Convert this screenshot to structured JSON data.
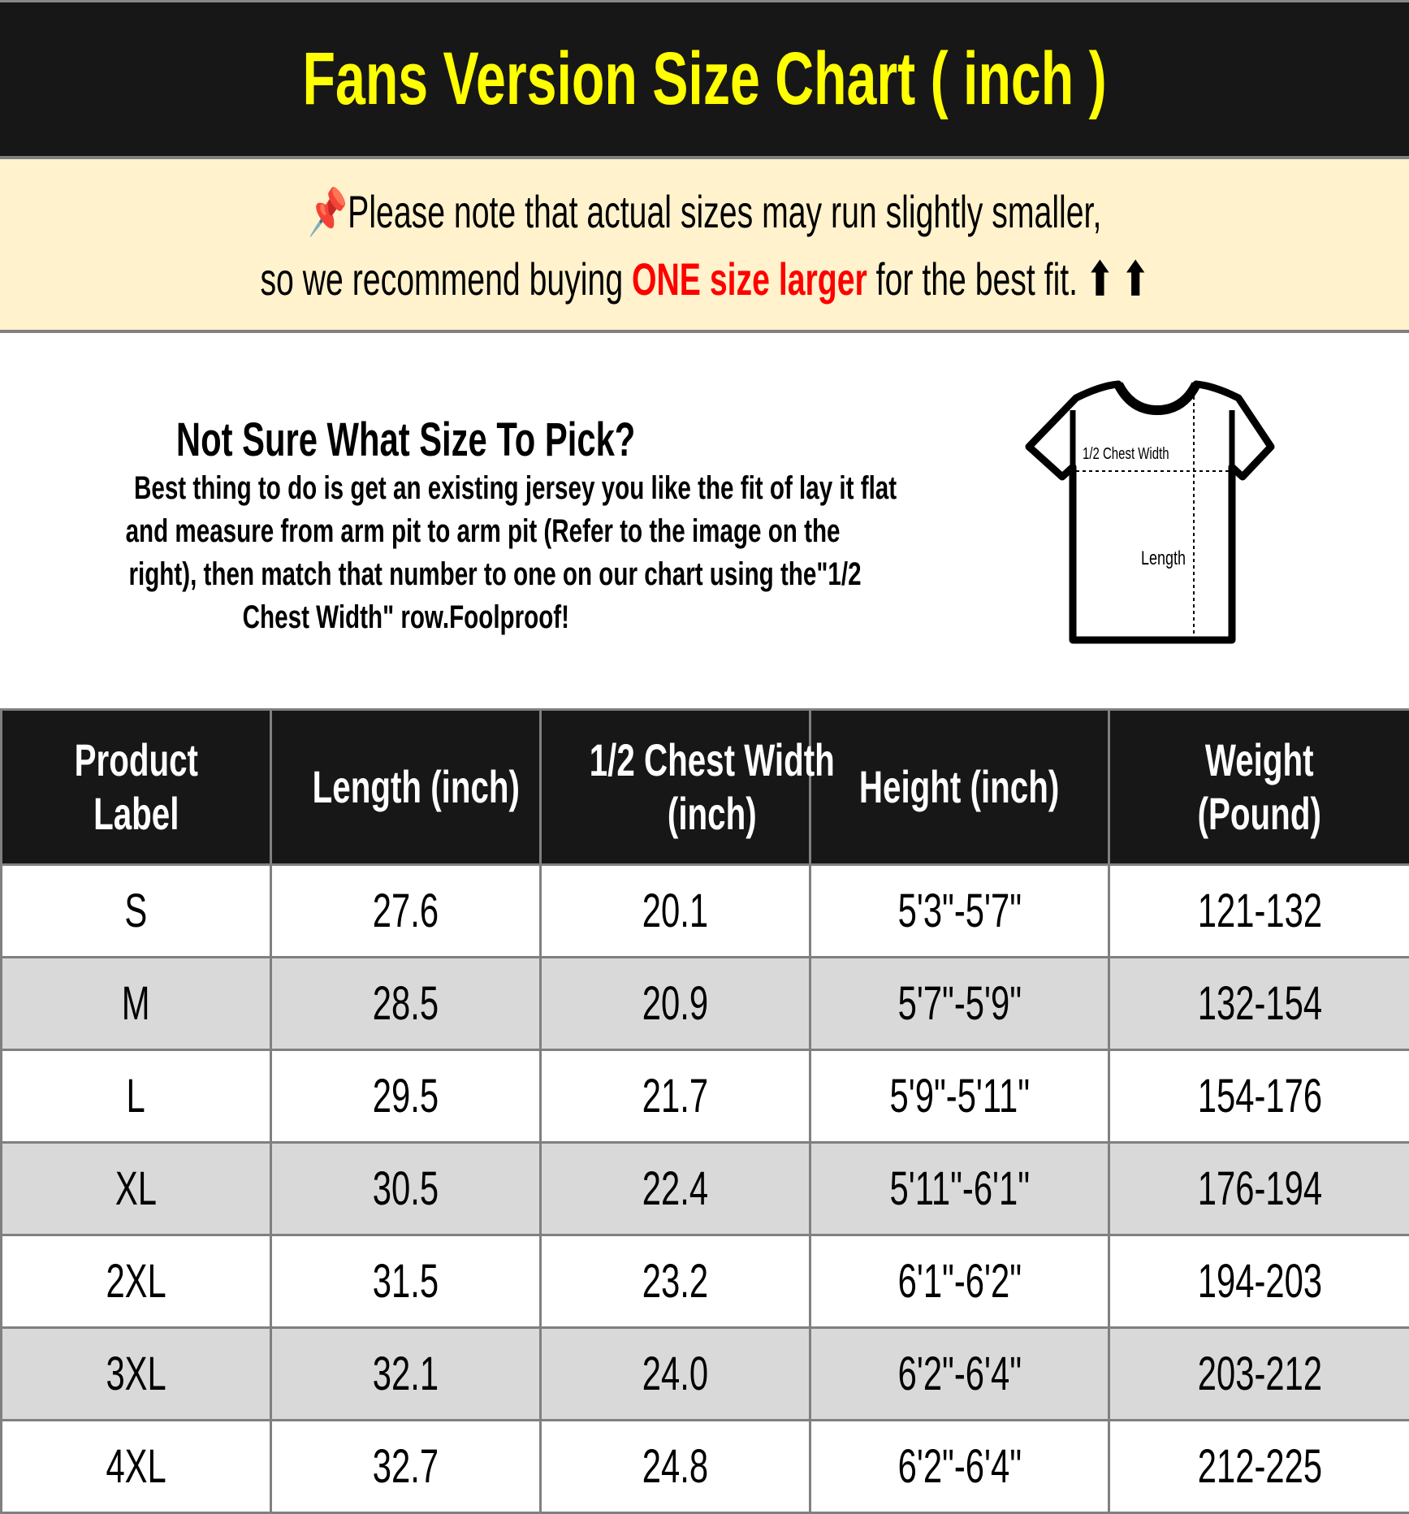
{
  "title": "Fans Version Size Chart ( inch )",
  "note": {
    "pin_icon": "pushpin-icon",
    "line1": "Please note that actual sizes may run slightly smaller,",
    "line2_before": "so we recommend buying ",
    "line2_highlight": "ONE size larger",
    "line2_after": " for the best fit.",
    "arrows": "⬆ ⬆",
    "colors": {
      "highlight": "#ff0000",
      "background": "#fff2cc",
      "title": "#ffff00",
      "header_bg": "#171717"
    }
  },
  "info": {
    "heading": "Not Sure What Size To Pick?",
    "body_lines": [
      "Best thing to do is get an existing jersey you like the fit of lay it flat",
      "and measure from arm pit to arm pit (Refer to the image on the",
      "right), then match that number to one on our chart using the\"1/2",
      "Chest Width\" row.Foolproof!"
    ],
    "diagram": {
      "chest_label": "1/2 Chest Width",
      "length_label": "Length"
    }
  },
  "table": {
    "headers": [
      [
        "Product",
        "Label"
      ],
      [
        "Length (inch)"
      ],
      [
        "1/2 Chest Width",
        "(inch)"
      ],
      [
        "Height (inch)"
      ],
      [
        "Weight",
        "(Pound)"
      ]
    ],
    "rows": [
      [
        "S",
        "27.6",
        "20.1",
        "5'3\"-5'7\"",
        "121-132"
      ],
      [
        "M",
        "28.5",
        "20.9",
        "5'7\"-5'9\"",
        "132-154"
      ],
      [
        "L",
        "29.5",
        "21.7",
        "5'9\"-5'11\"",
        "154-176"
      ],
      [
        "XL",
        "30.5",
        "22.4",
        "5'11\"-6'1\"",
        "176-194"
      ],
      [
        "2XL",
        "31.5",
        "23.2",
        "6'1\"-6'2\"",
        "194-203"
      ],
      [
        "3XL",
        "32.1",
        "24.0",
        "6'2\"-6'4\"",
        "203-212"
      ],
      [
        "4XL",
        "32.7",
        "24.8",
        "6'2\"-6'4\"",
        "212-225"
      ]
    ]
  }
}
